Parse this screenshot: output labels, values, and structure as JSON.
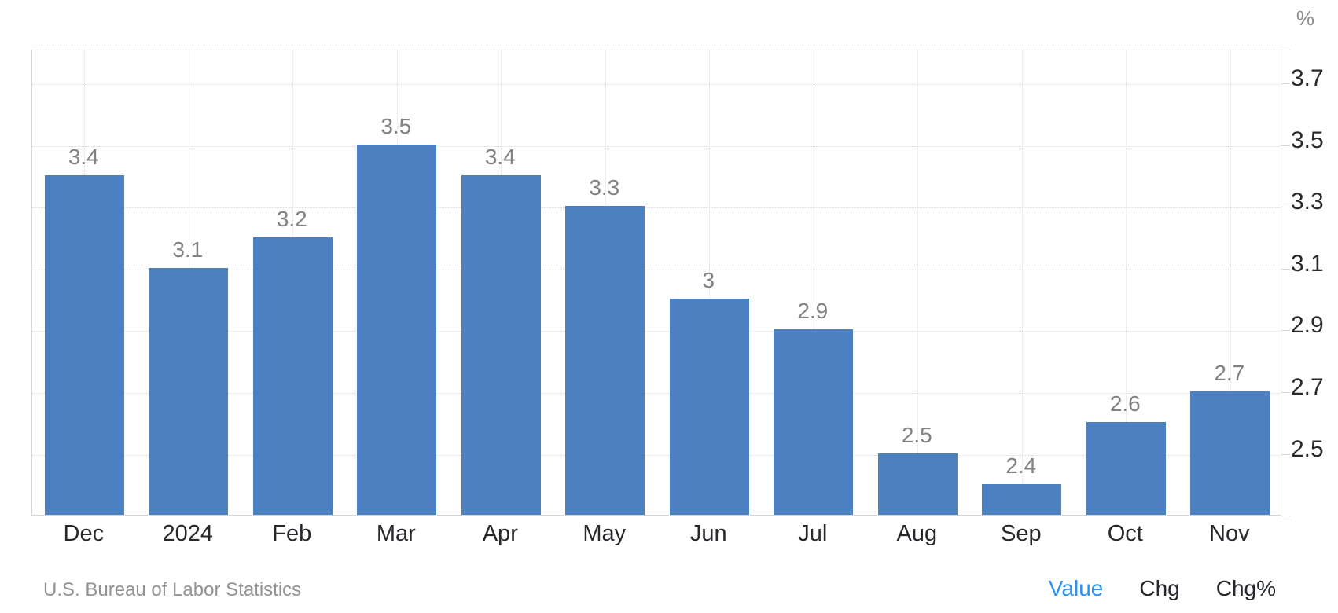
{
  "chart_data": {
    "type": "bar",
    "title": "",
    "xlabel": "",
    "ylabel": "%",
    "unit_label": "%",
    "categories": [
      "Dec",
      "2024",
      "Feb",
      "Mar",
      "Apr",
      "May",
      "Jun",
      "Jul",
      "Aug",
      "Sep",
      "Oct",
      "Nov"
    ],
    "values": [
      3.4,
      3.1,
      3.2,
      3.5,
      3.4,
      3.3,
      3.0,
      2.9,
      2.5,
      2.4,
      2.6,
      2.7
    ],
    "value_labels": [
      "3.4",
      "3.1",
      "3.2",
      "3.5",
      "3.4",
      "3.3",
      "3",
      "2.9",
      "2.5",
      "2.4",
      "2.6",
      "2.7"
    ],
    "y_ticks": [
      3.7,
      3.5,
      3.3,
      3.1,
      2.9,
      2.7,
      2.5
    ],
    "y_tick_labels": [
      "3.7",
      "3.5",
      "3.3",
      "3.1",
      "2.9",
      "2.7",
      "2.5"
    ],
    "ylim": [
      2.3,
      3.81
    ],
    "grid": "dotted",
    "legend_position": "none",
    "bar_color": "#4d80c0",
    "data_label_color": "#828282"
  },
  "footer": {
    "source": "U.S. Bureau of Labor Statistics",
    "links": [
      {
        "label": "Value",
        "active": true
      },
      {
        "label": "Chg",
        "active": false
      },
      {
        "label": "Chg%",
        "active": false
      }
    ]
  },
  "colors": {
    "accent_active_link": "#2b90f2",
    "inactive_link": "#24272b",
    "axis_line": "#d6d6d6",
    "gridline": "#d9d9d9",
    "tick_text": "#27292d"
  }
}
